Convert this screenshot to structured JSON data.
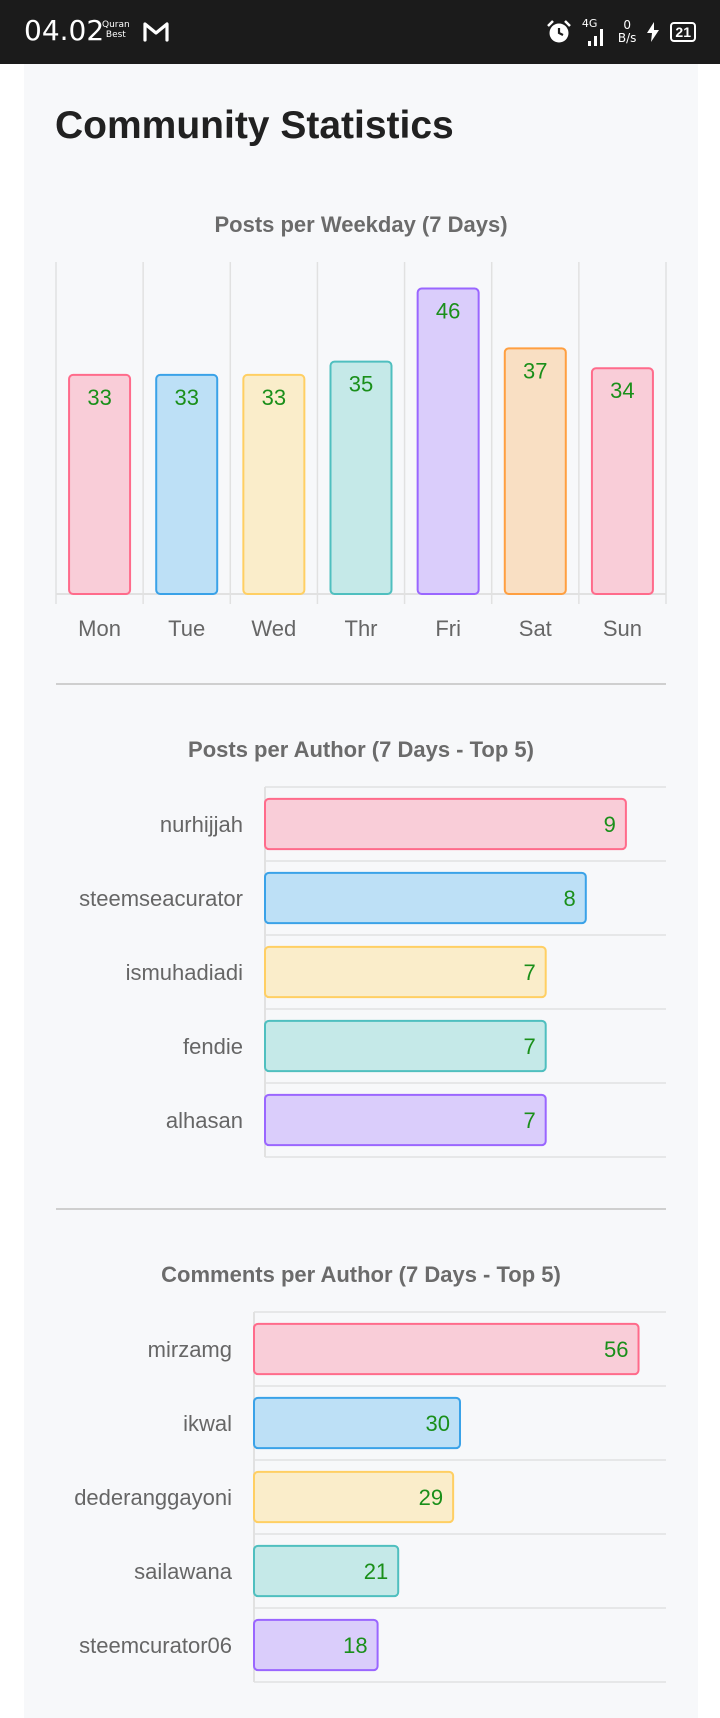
{
  "status_bar": {
    "time": "04.02",
    "app_badge": [
      "Quran",
      "Best"
    ],
    "network": "4G",
    "speed_value": "0",
    "speed_unit": "B/s",
    "battery": "21"
  },
  "page": {
    "title": "Community Statistics"
  },
  "colors": {
    "fills": [
      "#f9cdd8",
      "#bde0f6",
      "#faedca",
      "#c5e9e8",
      "#dacdfb",
      "#f9dfc3"
    ],
    "strokes": [
      "#ff6b8b",
      "#3aa2e8",
      "#ffcf63",
      "#4fbfbf",
      "#9a66ff",
      "#ff9f40"
    ],
    "value_label": "#1a8f1a",
    "axis_label": "#666666",
    "grid": "#e1e1e1"
  },
  "chart_data": [
    {
      "type": "bar",
      "title": "Posts per Weekday (7 Days)",
      "categories": [
        "Mon",
        "Tue",
        "Wed",
        "Thr",
        "Fri",
        "Sat",
        "Sun"
      ],
      "values": [
        33,
        33,
        33,
        35,
        46,
        37,
        34
      ],
      "ylim": [
        0,
        50
      ],
      "grid": true,
      "bar_colors": [
        0,
        1,
        2,
        3,
        4,
        5,
        0
      ]
    },
    {
      "type": "bar",
      "orientation": "horizontal",
      "title": "Posts per Author (7 Days - Top 5)",
      "categories": [
        "nurhijjah",
        "steemseacurator",
        "ismuhadiadi",
        "fendie",
        "alhasan"
      ],
      "values": [
        9,
        8,
        7,
        7,
        7
      ],
      "xlim": [
        0,
        10
      ],
      "grid": true,
      "bar_colors": [
        0,
        1,
        2,
        3,
        4
      ]
    },
    {
      "type": "bar",
      "orientation": "horizontal",
      "title": "Comments per Author (7 Days - Top 5)",
      "categories": [
        "mirzamg",
        "ikwal",
        "dederanggayoni",
        "sailawana",
        "steemcurator06"
      ],
      "values": [
        56,
        30,
        29,
        21,
        18
      ],
      "xlim": [
        0,
        60
      ],
      "grid": true,
      "bar_colors": [
        0,
        1,
        2,
        3,
        4
      ]
    }
  ]
}
